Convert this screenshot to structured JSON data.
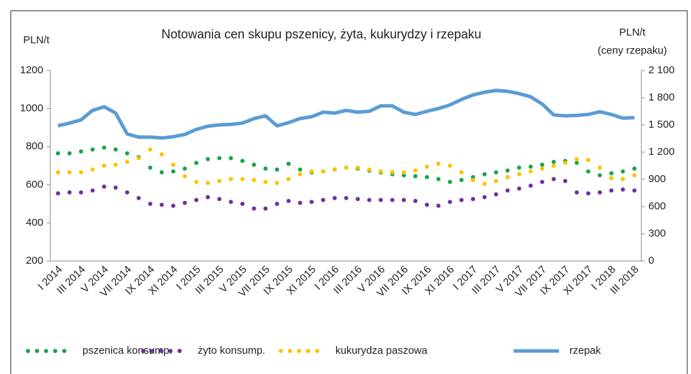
{
  "chart_data": {
    "type": "line",
    "title": "Notowania cen skupu pszenicy, żyta, kukurydzy i rzepaku",
    "y_label": "PLN/t",
    "y2_label": "PLN/t",
    "y2_sublabel": "(ceny rzepaku)",
    "categories": [
      "I 2014",
      null,
      "III 2014",
      null,
      "V 2014",
      null,
      "VII 2014",
      null,
      "IX 2014",
      null,
      "XI 2014",
      null,
      "I 2015",
      null,
      "III 2015",
      null,
      "V 2015",
      null,
      "VII 2015",
      null,
      "IX 2015",
      null,
      "XI 2015",
      null,
      "I 2016",
      null,
      "III 2016",
      null,
      "V 2016",
      null,
      "VII 2016",
      null,
      "IX 2016",
      null,
      "XI 2016",
      null,
      "I 2017",
      null,
      "III 2017",
      null,
      "V 2017",
      null,
      "VII 2017",
      null,
      "IX 2017",
      null,
      "XI 2017",
      null,
      "I 2018",
      null,
      "III 2018"
    ],
    "ylim": [
      200,
      1200
    ],
    "yticks": [
      200,
      400,
      600,
      800,
      1000,
      1200
    ],
    "y2lim": [
      0,
      2100
    ],
    "y2ticks": [
      0,
      300,
      600,
      900,
      {
        "value": 1200,
        "label": "1 200"
      },
      {
        "value": 1500,
        "label": "1 500"
      },
      {
        "value": 1800,
        "label": "1 800"
      },
      {
        "value": 2100,
        "label": "2 100"
      }
    ],
    "grid": false,
    "legend": "bottom",
    "series": [
      {
        "name": "pszenica konsump.",
        "color": "#1aa34a",
        "style": "dotted",
        "values": [
          765,
          765,
          775,
          785,
          795,
          785,
          765,
          745,
          690,
          665,
          670,
          685,
          715,
          735,
          740,
          740,
          725,
          705,
          685,
          680,
          710,
          680,
          665,
          670,
          680,
          690,
          685,
          675,
          665,
          655,
          650,
          645,
          640,
          630,
          615,
          625,
          640,
          655,
          665,
          675,
          690,
          695,
          705,
          720,
          725,
          715,
          670,
          650,
          660,
          670,
          685
        ]
      },
      {
        "name": "żyto konsump.",
        "color": "#7030a0",
        "style": "dotted",
        "values": [
          555,
          560,
          560,
          570,
          590,
          585,
          560,
          530,
          500,
          495,
          490,
          505,
          520,
          535,
          525,
          510,
          500,
          475,
          475,
          500,
          515,
          505,
          510,
          520,
          530,
          530,
          525,
          520,
          520,
          520,
          520,
          515,
          495,
          490,
          510,
          520,
          525,
          535,
          550,
          570,
          580,
          595,
          615,
          630,
          620,
          560,
          555,
          560,
          570,
          575,
          570
        ]
      },
      {
        "name": "kukurydza paszowa",
        "color": "#ffc000",
        "style": "dotted",
        "values": [
          665,
          665,
          665,
          680,
          700,
          705,
          720,
          740,
          785,
          760,
          705,
          645,
          615,
          610,
          620,
          630,
          630,
          625,
          615,
          610,
          630,
          655,
          670,
          670,
          680,
          690,
          690,
          680,
          670,
          665,
          665,
          675,
          695,
          710,
          700,
          665,
          625,
          605,
          620,
          640,
          655,
          670,
          685,
          700,
          715,
          735,
          730,
          690,
          635,
          630,
          650
        ]
      },
      {
        "name": "rzepak",
        "color": "#5b9bd5",
        "style": "solid",
        "axis": "y2",
        "values": [
          1490,
          1520,
          1555,
          1660,
          1700,
          1630,
          1400,
          1365,
          1365,
          1355,
          1370,
          1395,
          1450,
          1485,
          1500,
          1505,
          1520,
          1570,
          1600,
          1490,
          1525,
          1570,
          1590,
          1640,
          1630,
          1660,
          1640,
          1650,
          1710,
          1710,
          1640,
          1615,
          1650,
          1680,
          1720,
          1780,
          1830,
          1860,
          1880,
          1870,
          1845,
          1810,
          1730,
          1610,
          1600,
          1605,
          1615,
          1645,
          1615,
          1575,
          1580
        ]
      }
    ]
  }
}
